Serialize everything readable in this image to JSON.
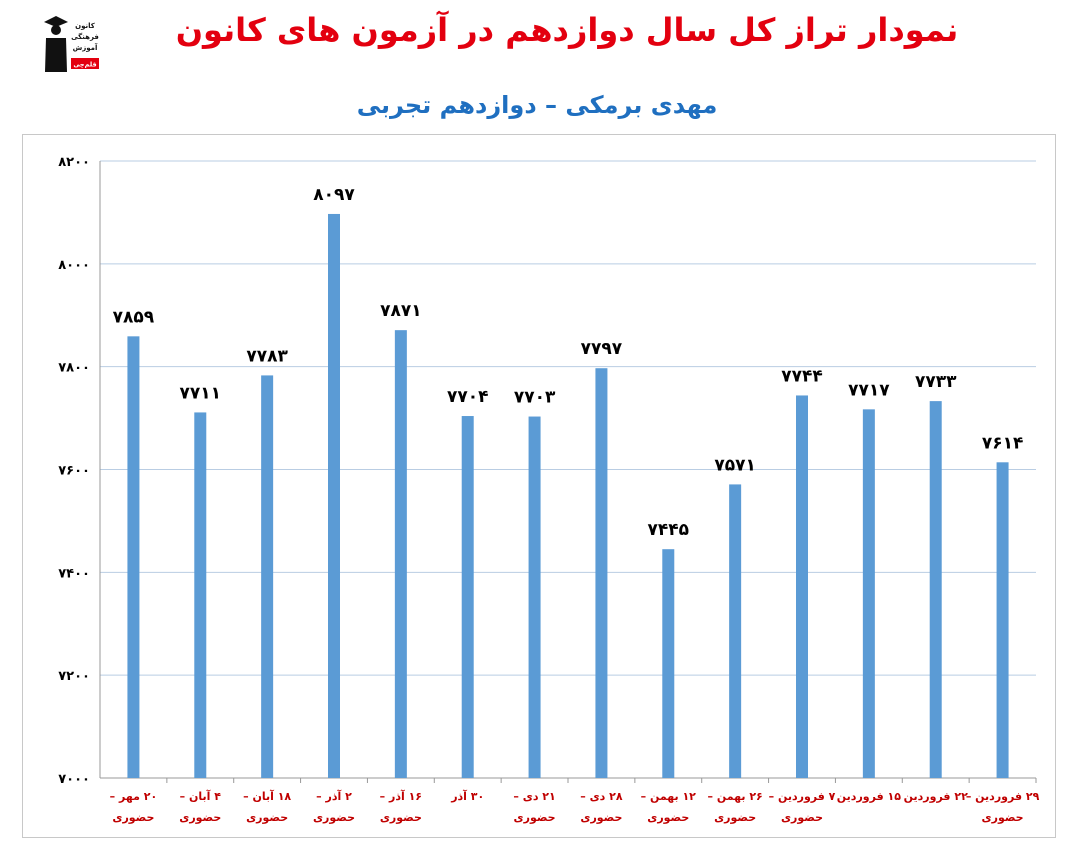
{
  "header": {
    "title": "نمودار تراز کل سال دوازدهم در آزمون های کانون",
    "subtitle": "مهدی برمکی – دوازدهم تجربی",
    "title_color": "#e3000f",
    "subtitle_color": "#1f6fc0"
  },
  "logo": {
    "icon": "graduate-logo-icon",
    "lines": [
      "کانون",
      "فرهنگی",
      "آموزش"
    ],
    "badge": "قلم‌چی"
  },
  "colors": {
    "bar": "#5b9bd5",
    "grid": "#b9cde3",
    "label": "#000000",
    "category": "#c00000"
  },
  "chart_data": {
    "type": "bar",
    "title": "نمودار تراز کل سال دوازدهم در آزمون های کانون",
    "subtitle": "مهدی برمکی – دوازدهم تجربی",
    "xlabel": "",
    "ylabel": "",
    "ylim": [
      7000,
      8200
    ],
    "yticks": [
      7000,
      7200,
      7400,
      7600,
      7800,
      8000,
      8200
    ],
    "ytick_labels": [
      "۷۰۰۰",
      "۷۲۰۰",
      "۷۴۰۰",
      "۷۶۰۰",
      "۷۸۰۰",
      "۸۰۰۰",
      "۸۲۰۰"
    ],
    "grid": true,
    "legend": "none",
    "categories": [
      [
        "۲۰ مهر –",
        "حضوری"
      ],
      [
        "۴ آبان –",
        "حضوری"
      ],
      [
        "۱۸ آبان –",
        "حضوری"
      ],
      [
        "۲ آذر –",
        "حضوری"
      ],
      [
        "۱۶ آذر –",
        "حضوری"
      ],
      [
        "۳۰ آذر",
        ""
      ],
      [
        "۲۱ دی –",
        "حضوری"
      ],
      [
        "۲۸ دی –",
        "حضوری"
      ],
      [
        "۱۲ بهمن –",
        "حضوری"
      ],
      [
        "۲۶ بهمن –",
        "حضوری"
      ],
      [
        "۷ فروردین –",
        "حضوری"
      ],
      [
        "۱۵ فروردین",
        ""
      ],
      [
        "۲۲ فروردین",
        ""
      ],
      [
        "۲۹ فروردین –",
        "حضوری"
      ]
    ],
    "values": [
      7859,
      7711,
      7783,
      8097,
      7871,
      7704,
      7703,
      7797,
      7445,
      7571,
      7744,
      7717,
      7733,
      7614
    ],
    "value_labels": [
      "۷۸۵۹",
      "۷۷۱۱",
      "۷۷۸۳",
      "۸۰۹۷",
      "۷۸۷۱",
      "۷۷۰۴",
      "۷۷۰۳",
      "۷۷۹۷",
      "۷۴۴۵",
      "۷۵۷۱",
      "۷۷۴۴",
      "۷۷۱۷",
      "۷۷۳۳",
      "۷۶۱۴"
    ]
  }
}
